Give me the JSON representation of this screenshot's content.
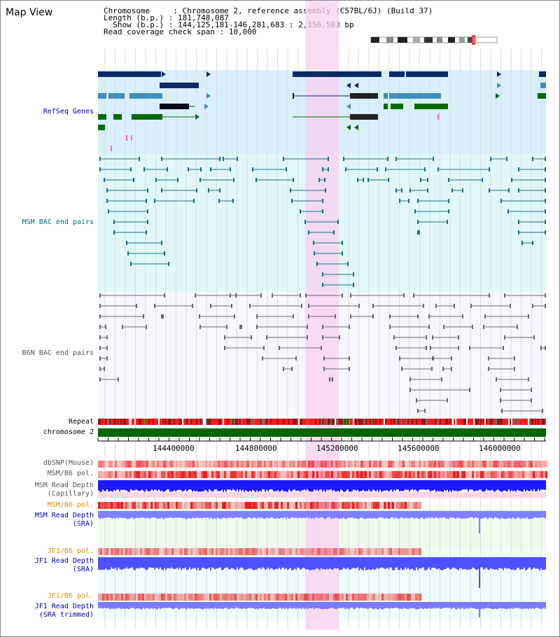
{
  "title": "Map View",
  "header": {
    "line1": "Chromosome     : Chromosome 2, reference assembly (C57BL/6J) (Build 37)",
    "line2": "Length (b.p.) : 181,748,087",
    "line3": "  Show (b.p.) : 144,125,181-146,281,683 : 2,156,503 bp",
    "line4": "Read coverage check span : 10,000"
  },
  "tracks": {
    "refseq": "RefSeq Genes",
    "msm_bac": "MSM BAC end pairs",
    "b6n_bac": "B6N BAC end pairs",
    "repeat": "Repeat",
    "chromosome": "chromosome 2",
    "dbsnp": "dbSNP(Mouse)",
    "msm_b6_pol_1": "MSM/B6 pol.",
    "msm_depth_cap_1": "MSM Read Depth",
    "msm_depth_cap_2": "(Capillary)",
    "msm_b6_pol_2": "MSM/B6 pol.",
    "msm_depth_sra_1": "MSM Read Depth",
    "msm_depth_sra_2": "(SRA)",
    "jf1_b6_pol_1": "JF1/B6 pol.",
    "jf1_depth_sra_1": "JF1 Read Depth",
    "jf1_depth_sra_2": "(SRA)",
    "jf1_b6_pol_2": "JF1/B6 pol.",
    "jf1_depth_trim_1": "JF1 Read Depth",
    "jf1_depth_trim_2": "(SRA trimmed)"
  },
  "axis_ticks": [
    "144400000",
    "144800000",
    "145200000",
    "145600000",
    "146000000"
  ],
  "colors": {
    "refseq_bg": "#d8f0fb",
    "msm_bg": "#e0f8fa",
    "b6n_bg": "#f7f7ff",
    "highlight": "#f8d8f0",
    "chromosome": "#006600",
    "depth_blue": "#0000ff",
    "pol_red": "#ff3333"
  }
}
